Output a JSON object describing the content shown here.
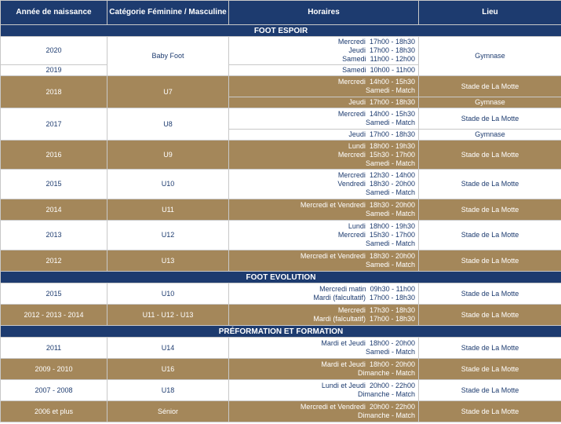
{
  "headers": {
    "year": "Année de naissance",
    "category": "Catégorie Féminine / Masculine",
    "schedule": "Horaires",
    "place": "Lieu"
  },
  "sections": [
    {
      "title": "FOOT ESPOIR",
      "rows": [
        {
          "year": "2020",
          "category": "Baby Foot",
          "lines": [
            {
              "day": "Mercredi",
              "time": "17h00 - 18h30"
            },
            {
              "day": "Jeudi",
              "time": "17h00 - 18h30"
            },
            {
              "day": "Samedi",
              "time": "11h00 - 12h00"
            }
          ],
          "place": "Gymnase"
        },
        {
          "year": "2019",
          "category": "",
          "lines": [
            {
              "day": "Samedi",
              "time": "10h00 - 11h00"
            }
          ],
          "place": ""
        },
        {
          "year": "2018",
          "category": "U7",
          "lines": [
            {
              "day": "Mercredi",
              "time": "14h00 - 15h30"
            },
            {
              "day": "",
              "time": "Samedi - Match"
            }
          ],
          "place": "Stade de La Motte"
        },
        {
          "year": "",
          "category": "",
          "lines": [
            {
              "day": "Jeudi",
              "time": "17h00 - 18h30"
            }
          ],
          "place": "Gymnase"
        },
        {
          "year": "2017",
          "category": "U8",
          "lines": [
            {
              "day": "Mercredi",
              "time": "14h00 - 15h30"
            },
            {
              "day": "",
              "time": "Samedi - Match"
            }
          ],
          "place": "Stade de La Motte"
        },
        {
          "year": "",
          "category": "",
          "lines": [
            {
              "day": "Jeudi",
              "time": "17h00 - 18h30"
            }
          ],
          "place": "Gymnase"
        },
        {
          "year": "2016",
          "category": "U9",
          "lines": [
            {
              "day": "Lundi",
              "time": "18h00 - 19h30"
            },
            {
              "day": "Mercredi",
              "time": "15h30 - 17h00"
            },
            {
              "day": "",
              "time": "Samedi - Match"
            }
          ],
          "place": "Stade de La Motte"
        },
        {
          "year": "2015",
          "category": "U10",
          "lines": [
            {
              "day": "Mercredi",
              "time": "12h30 - 14h00"
            },
            {
              "day": "Vendredi",
              "time": "18h30 - 20h00"
            },
            {
              "day": "",
              "time": "Samedi - Match"
            }
          ],
          "place": "Stade de La Motte"
        },
        {
          "year": "2014",
          "category": "U11",
          "lines": [
            {
              "day": "Mercredi et Vendredi",
              "time": "18h30 - 20h00"
            },
            {
              "day": "",
              "time": "Samedi - Match"
            }
          ],
          "place": "Stade de La Motte"
        },
        {
          "year": "2013",
          "category": "U12",
          "lines": [
            {
              "day": "Lundi",
              "time": "18h00 - 19h30"
            },
            {
              "day": "Mercredi",
              "time": "15h30 - 17h00"
            },
            {
              "day": "",
              "time": "Samedi - Match"
            }
          ],
          "place": "Stade de La Motte"
        },
        {
          "year": "2012",
          "category": "U13",
          "lines": [
            {
              "day": "Mercredi et Vendredi",
              "time": "18h30 - 20h00"
            },
            {
              "day": "",
              "time": "Samedi - Match"
            }
          ],
          "place": "Stade de La Motte"
        }
      ]
    },
    {
      "title": "FOOT EVOLUTION",
      "rows": [
        {
          "year": "2015",
          "category": "U10",
          "lines": [
            {
              "day": "Mercredi matin",
              "time": "09h30 - 11h00"
            },
            {
              "day": "Mardi (falcultatif)",
              "time": "17h00 - 18h30"
            }
          ],
          "place": "Stade de La Motte"
        },
        {
          "year": "2012 - 2013 - 2014",
          "category": "U11 - U12 - U13",
          "lines": [
            {
              "day": "Mercredi",
              "time": "17h30 - 18h30"
            },
            {
              "day": "Mardi (falcultatif)",
              "time": "17h00 - 18h30"
            }
          ],
          "place": "Stade de La Motte"
        }
      ]
    },
    {
      "title": "PRÉFORMATION ET FORMATION",
      "rows": [
        {
          "year": "2011",
          "category": "U14",
          "lines": [
            {
              "day": "Mardi et Jeudi",
              "time": "18h00 - 20h00"
            },
            {
              "day": "",
              "time": "Samedi - Match"
            }
          ],
          "place": "Stade de La Motte"
        },
        {
          "year": "2009 - 2010",
          "category": "U16",
          "lines": [
            {
              "day": "Mardi et Jeudi",
              "time": "18h00 - 20h00"
            },
            {
              "day": "",
              "time": "Dimanche - Match"
            }
          ],
          "place": "Stade de La Motte"
        },
        {
          "year": "2007 - 2008",
          "category": "U18",
          "lines": [
            {
              "day": "Lundi et Jeudi",
              "time": "20h00 - 22h00"
            },
            {
              "day": "",
              "time": "Dimanche - Match"
            }
          ],
          "place": "Stade de La Motte"
        },
        {
          "year": "2006 et plus",
          "category": "Sénior",
          "lines": [
            {
              "day": "Mercredi et Vendredi",
              "time": "20h00 - 22h00"
            },
            {
              "day": "",
              "time": "Dimanche - Match"
            }
          ],
          "place": "Stade de La Motte"
        }
      ]
    }
  ]
}
